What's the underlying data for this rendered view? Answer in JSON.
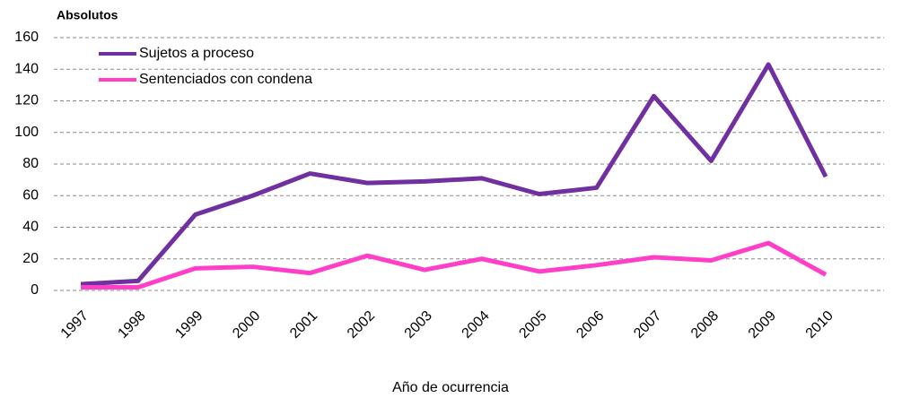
{
  "chart_data": {
    "type": "line",
    "y_label": "Absolutos",
    "x_label": "Año de ocurrencia",
    "categories": [
      "1997",
      "1998",
      "1999",
      "2000",
      "2001",
      "2002",
      "2003",
      "2004",
      "2005",
      "2006",
      "2007",
      "2008",
      "2009",
      "2010"
    ],
    "series": [
      {
        "name": "Sujetos a proceso",
        "color": "#7030a0",
        "values": [
          4,
          6,
          48,
          60,
          74,
          68,
          69,
          71,
          61,
          65,
          123,
          82,
          143,
          72
        ]
      },
      {
        "name": "Sentenciados con condena",
        "color": "#ff3fc8",
        "values": [
          2,
          2,
          14,
          15,
          11,
          22,
          13,
          20,
          12,
          16,
          21,
          19,
          30,
          10
        ]
      }
    ],
    "ylim": [
      0,
      160
    ],
    "yticks": [
      0,
      20,
      40,
      60,
      80,
      100,
      120,
      140,
      160
    ],
    "grid": true,
    "legend": "top-left"
  }
}
